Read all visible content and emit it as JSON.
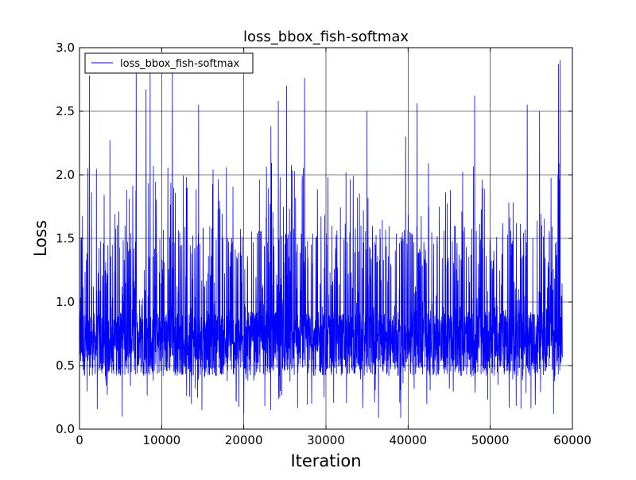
{
  "chart_data": {
    "type": "line",
    "title": "loss_bbox_fish-softmax",
    "xlabel": "Iteration",
    "ylabel": "Loss",
    "xlim": [
      0,
      60000
    ],
    "ylim": [
      0.0,
      3.0
    ],
    "xticks": [
      0,
      10000,
      20000,
      30000,
      40000,
      50000,
      60000
    ],
    "xtick_labels": [
      "0",
      "10000",
      "20000",
      "30000",
      "40000",
      "50000",
      "60000"
    ],
    "yticks": [
      0.0,
      0.5,
      1.0,
      1.5,
      2.0,
      2.5,
      3.0
    ],
    "ytick_labels": [
      "0.0",
      "0.5",
      "1.0",
      "1.5",
      "2.0",
      "2.5",
      "3.0"
    ],
    "grid": true,
    "legend": {
      "position": "top-left",
      "entries": [
        "loss_bbox_fish-softmax"
      ]
    },
    "series": [
      {
        "name": "loss_bbox_fish-softmax",
        "color": "#0000ff",
        "x_start": 0,
        "x_step": 20,
        "points_count": 2940,
        "x_end": 58800,
        "typical_range": [
          0.4,
          1.0
        ],
        "min_approx": 0.09,
        "max_approx": 2.92,
        "notable_peaks": [
          {
            "x": 1000,
            "y": 2.05
          },
          {
            "x": 1200,
            "y": 2.78
          },
          {
            "x": 3700,
            "y": 2.27
          },
          {
            "x": 6900,
            "y": 2.8
          },
          {
            "x": 8100,
            "y": 2.67
          },
          {
            "x": 8600,
            "y": 2.8
          },
          {
            "x": 11300,
            "y": 2.85
          },
          {
            "x": 14500,
            "y": 2.55
          },
          {
            "x": 23300,
            "y": 2.38
          },
          {
            "x": 24200,
            "y": 2.58
          },
          {
            "x": 25200,
            "y": 2.7
          },
          {
            "x": 27400,
            "y": 2.76
          },
          {
            "x": 35000,
            "y": 2.5
          },
          {
            "x": 39700,
            "y": 2.3
          },
          {
            "x": 41100,
            "y": 2.56
          },
          {
            "x": 48100,
            "y": 2.62
          },
          {
            "x": 54500,
            "y": 2.55
          },
          {
            "x": 56000,
            "y": 2.5
          },
          {
            "x": 57700,
            "y": 2.92
          },
          {
            "x": 58300,
            "y": 2.87
          },
          {
            "x": 58500,
            "y": 2.9
          }
        ],
        "notable_troughs": [
          {
            "x": 5200,
            "y": 0.1
          },
          {
            "x": 20000,
            "y": 0.12
          },
          {
            "x": 36400,
            "y": 0.09
          },
          {
            "x": 39100,
            "y": 0.09
          },
          {
            "x": 52300,
            "y": 0.17
          },
          {
            "x": 57700,
            "y": 0.12
          }
        ]
      }
    ]
  }
}
